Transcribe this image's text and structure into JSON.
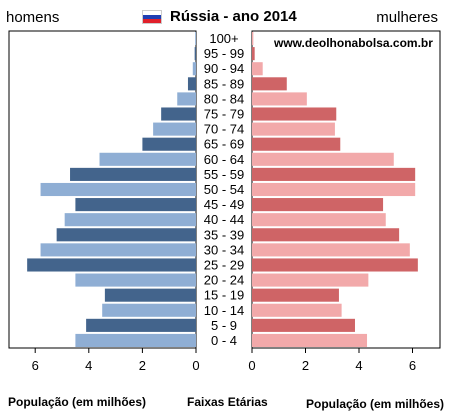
{
  "header": {
    "left_label": "homens",
    "right_label": "mulheres",
    "title": "Rússia  - ano 2014",
    "flag_colors": [
      "#ffffff",
      "#1f3fb3",
      "#e0202a"
    ]
  },
  "watermark": "www.deolhonabolsa.com.br",
  "footer": {
    "left_axis_title": "População (em milhões)",
    "center_title": "Faixas Etárias",
    "right_axis_title": "População (em milhões)"
  },
  "chart_data": {
    "type": "bar",
    "orientation": "population-pyramid",
    "categories": [
      "100+",
      "95 - 99",
      "90 - 94",
      "85 - 89",
      "80 - 84",
      "75 - 79",
      "70 - 74",
      "65 - 69",
      "60 - 64",
      "55 - 59",
      "50 - 54",
      "45 - 49",
      "40 - 44",
      "35 - 39",
      "30 - 34",
      "25 - 29",
      "20 - 24",
      "15 - 19",
      "10 - 14",
      "5 - 9",
      "0 - 4"
    ],
    "series": [
      {
        "name": "homens",
        "values": [
          0.03,
          0.05,
          0.12,
          0.3,
          0.7,
          1.3,
          1.6,
          2.0,
          3.6,
          4.7,
          5.8,
          4.5,
          4.9,
          5.2,
          5.8,
          6.3,
          4.5,
          3.4,
          3.5,
          4.1,
          4.5
        ],
        "colors": [
          "#8faed4",
          "#43648c"
        ]
      },
      {
        "name": "mulheres",
        "values": [
          0.05,
          0.1,
          0.4,
          1.3,
          2.05,
          3.15,
          3.1,
          3.3,
          5.3,
          6.1,
          6.1,
          4.9,
          5.0,
          5.5,
          5.9,
          6.2,
          4.35,
          3.25,
          3.35,
          3.85,
          4.3
        ],
        "colors": [
          "#f2a9aa",
          "#cf6466"
        ]
      }
    ],
    "xlim": [
      0,
      7
    ],
    "x_ticks": [
      "0",
      "2",
      "4",
      "6"
    ],
    "x_tick_values": [
      0,
      2,
      4,
      6
    ]
  }
}
